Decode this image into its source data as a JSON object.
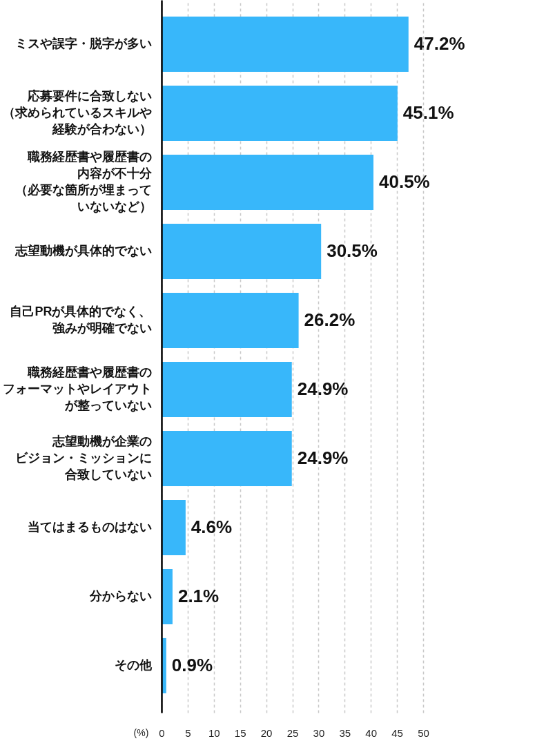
{
  "chart_data": {
    "type": "bar",
    "orientation": "horizontal",
    "xlabel": "(%)",
    "categories": [
      "ミスや誤字・脱字が多い",
      "応募要件に合致しない（求められているスキルや経験が合わない）",
      "職務経歴書や履歴書の内容が不十分（必要な箇所が埋まっていないなど）",
      "志望動機が具体的でない",
      "自己PRが具体的でなく、強みが明確でない",
      "職務経歴書や履歴書のフォーマットやレイアウトが整っていない",
      "志望動機が企業のビジョン・ミッションに合致していない",
      "当てはまるものはない",
      "分からない",
      "その他"
    ],
    "values": [
      47.2,
      45.1,
      40.5,
      30.5,
      26.2,
      24.9,
      24.9,
      4.6,
      2.1,
      0.9
    ],
    "color": "#38b7fa",
    "value_labels": [
      "47.2%",
      "45.1%",
      "40.5%",
      "30.5%",
      "26.2%",
      "24.9%",
      "24.9%",
      "4.6%",
      "2.1%",
      "0.9%"
    ],
    "xlim": [
      0,
      50
    ],
    "xticks": [
      0,
      5,
      10,
      15,
      20,
      25,
      30,
      35,
      40,
      45,
      50
    ],
    "grid": "x"
  }
}
